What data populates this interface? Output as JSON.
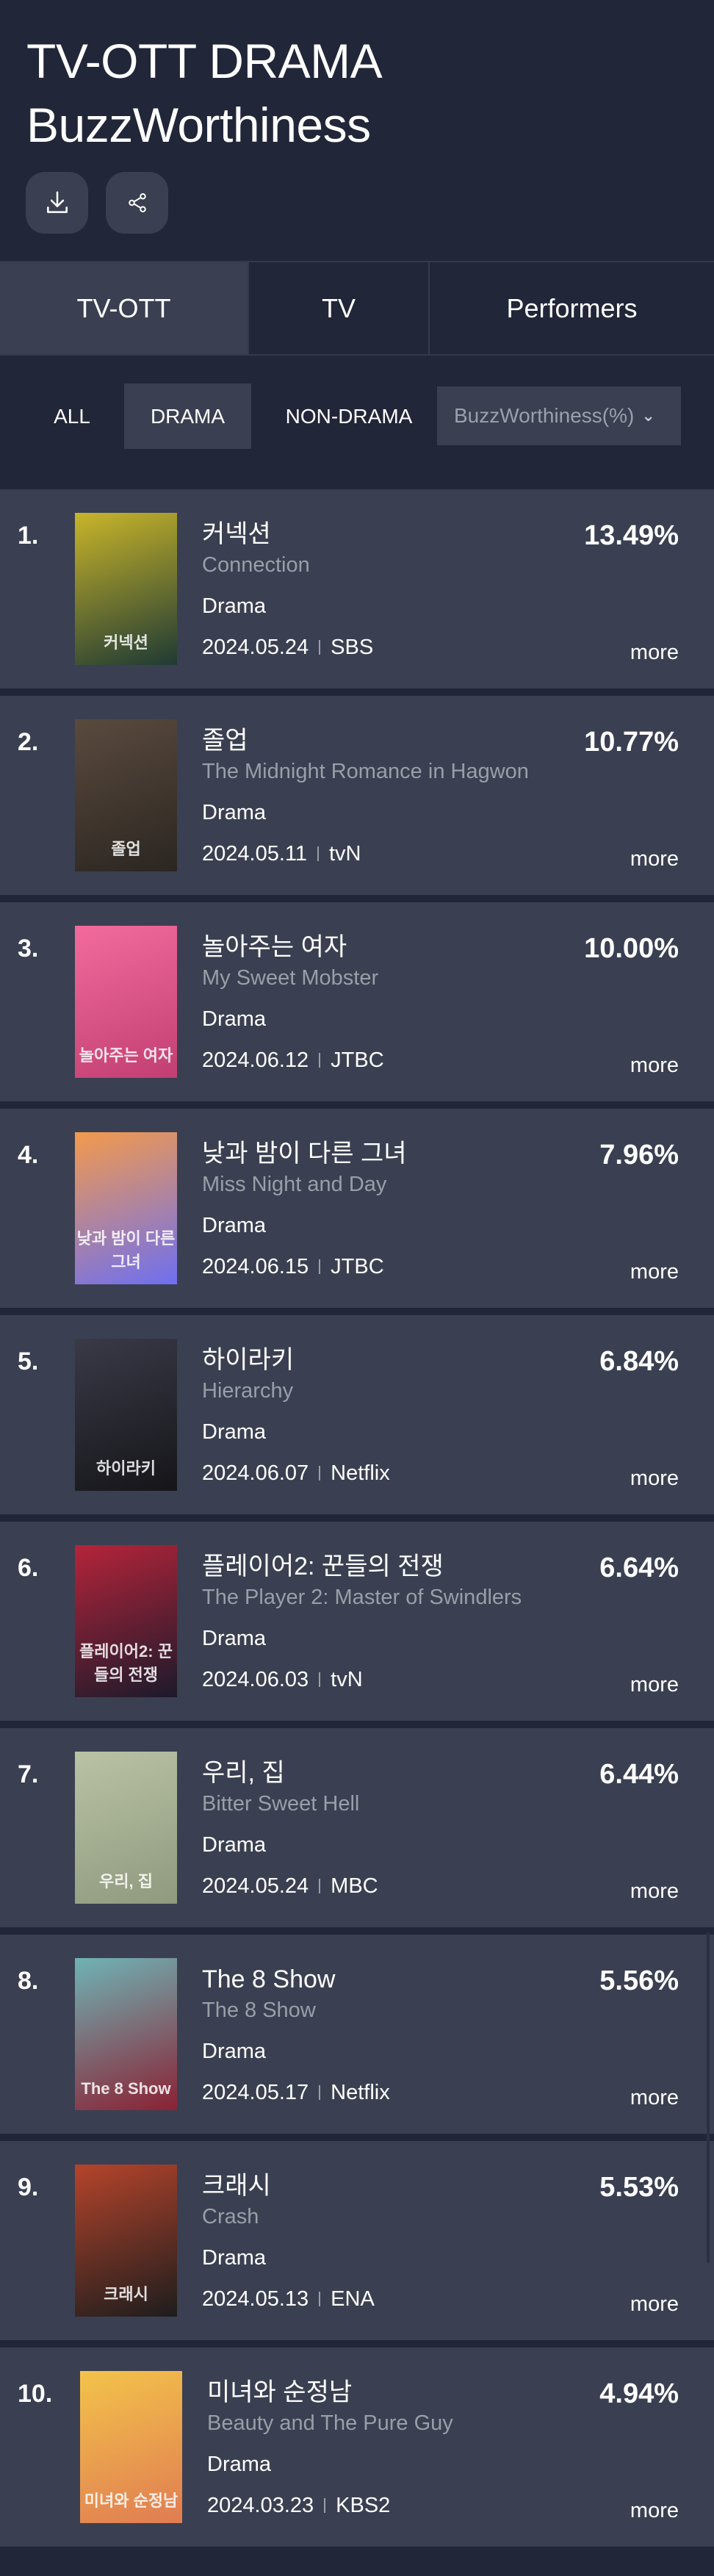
{
  "header": {
    "title_line1": "TV-OTT DRAMA",
    "title_line2": "BuzzWorthiness",
    "download_icon": "download-icon",
    "share_icon": "share-icon"
  },
  "tabs": [
    {
      "label": "TV-OTT",
      "active": true
    },
    {
      "label": "TV",
      "active": false
    },
    {
      "label": "Performers",
      "active": false
    }
  ],
  "filters": [
    {
      "label": "ALL",
      "active": false
    },
    {
      "label": "DRAMA",
      "active": true
    },
    {
      "label": "NON-DRAMA",
      "active": false
    }
  ],
  "sort_select": {
    "value": "BuzzWorthiness(%)"
  },
  "more_label": "more",
  "colors": {
    "background": "#212638",
    "card": "#3a4051",
    "subtitle": "#9a9ea8"
  },
  "rankings": [
    {
      "rank": "1.",
      "title_kr": "커넥션",
      "title_en": "Connection",
      "genre": "Drama",
      "date": "2024.05.24",
      "channel": "SBS",
      "value": "13.49%",
      "poster": [
        "#c9b52a",
        "#1f3a34"
      ]
    },
    {
      "rank": "2.",
      "title_kr": "졸업",
      "title_en": "The Midnight Romance in Hagwon",
      "genre": "Drama",
      "date": "2024.05.11",
      "channel": "tvN",
      "value": "10.77%",
      "poster": [
        "#5a4a3e",
        "#2b2621"
      ]
    },
    {
      "rank": "3.",
      "title_kr": "놀아주는 여자",
      "title_en": "My Sweet Mobster",
      "genre": "Drama",
      "date": "2024.06.12",
      "channel": "JTBC",
      "value": "10.00%",
      "poster": [
        "#f26b9c",
        "#c23f73"
      ]
    },
    {
      "rank": "4.",
      "title_kr": "낮과 밤이 다른 그녀",
      "title_en": "Miss Night and Day",
      "genre": "Drama",
      "date": "2024.06.15",
      "channel": "JTBC",
      "value": "7.96%",
      "poster": [
        "#f39a4c",
        "#6e6ff0"
      ]
    },
    {
      "rank": "5.",
      "title_kr": "하이라키",
      "title_en": "Hierarchy",
      "genre": "Drama",
      "date": "2024.06.07",
      "channel": "Netflix",
      "value": "6.84%",
      "poster": [
        "#3a3a48",
        "#151519"
      ]
    },
    {
      "rank": "6.",
      "title_kr": "플레이어2: 꾼들의 전쟁",
      "title_en": "The Player 2: Master of Swindlers",
      "genre": "Drama",
      "date": "2024.06.03",
      "channel": "tvN",
      "value": "6.64%",
      "poster": [
        "#b5243a",
        "#1c1a2b"
      ]
    },
    {
      "rank": "7.",
      "title_kr": "우리, 집",
      "title_en": "Bitter Sweet Hell",
      "genre": "Drama",
      "date": "2024.05.24",
      "channel": "MBC",
      "value": "6.44%",
      "poster": [
        "#b9c2a4",
        "#8f9a7e"
      ]
    },
    {
      "rank": "8.",
      "title_kr": "The 8 Show",
      "title_en": "The 8 Show",
      "genre": "Drama",
      "date": "2024.05.17",
      "channel": "Netflix",
      "value": "5.56%",
      "poster": [
        "#6fb3b5",
        "#8a2234"
      ]
    },
    {
      "rank": "9.",
      "title_kr": "크래시",
      "title_en": "Crash",
      "genre": "Drama",
      "date": "2024.05.13",
      "channel": "ENA",
      "value": "5.53%",
      "poster": [
        "#b5442b",
        "#1d1d1d"
      ]
    },
    {
      "rank": "10.",
      "title_kr": "미녀와 순정남",
      "title_en": "Beauty and The Pure Guy",
      "genre": "Drama",
      "date": "2024.03.23",
      "channel": "KBS2",
      "value": "4.94%",
      "poster": [
        "#f3c34a",
        "#e07c52"
      ]
    }
  ]
}
